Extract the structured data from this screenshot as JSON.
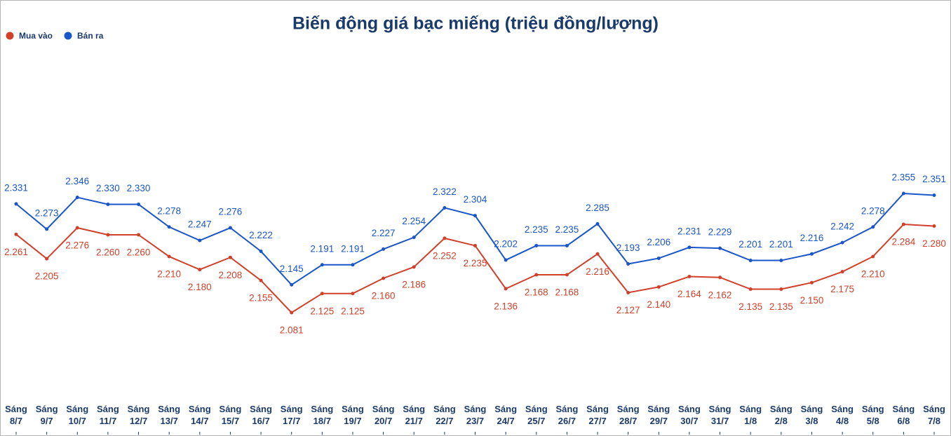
{
  "chart_data": {
    "type": "line",
    "title": "Biến động giá bạc miếng (triệu đồng/lượng)",
    "categories": [
      "Sáng 8/7",
      "Sáng 9/7",
      "Sáng 10/7",
      "Sáng 11/7",
      "Sáng 12/7",
      "Sáng 13/7",
      "Sáng 14/7",
      "Sáng 15/7",
      "Sáng 16/7",
      "Sáng 17/7",
      "Sáng 18/7",
      "Sáng 19/7",
      "Sáng 20/7",
      "Sáng 21/7",
      "Sáng 22/7",
      "Sáng 23/7",
      "Sáng 24/7",
      "Sáng 25/7",
      "Sáng 26/7",
      "Sáng 27/7",
      "Sáng 28/7",
      "Sáng 29/7",
      "Sáng 30/7",
      "Sáng 31/7",
      "Sáng 1/8",
      "Sáng 2/8",
      "Sáng 3/8",
      "Sáng 4/8",
      "Sáng 5/8",
      "Sáng 6/8",
      "Sáng 7/8"
    ],
    "series": [
      {
        "name": "Mua vào",
        "color": "#d0402a",
        "values": [
          2.261,
          2.205,
          2.276,
          2.26,
          2.26,
          2.21,
          2.18,
          2.208,
          2.155,
          2.081,
          2.125,
          2.125,
          2.16,
          2.186,
          2.252,
          2.235,
          2.136,
          2.168,
          2.168,
          2.216,
          2.127,
          2.14,
          2.164,
          2.162,
          2.135,
          2.135,
          2.15,
          2.175,
          2.21,
          2.284,
          2.28
        ],
        "value_labels": [
          "2.261",
          "2.205",
          "2.276",
          "2.260",
          "2.260",
          "2.210",
          "2.180",
          "2.208",
          "2.155",
          "2.081",
          "2.125",
          "2.125",
          "2.160",
          "2.186",
          "2.252",
          "2.235",
          "2.136",
          "2.168",
          "2.168",
          "2.216",
          "2.127",
          "2.140",
          "2.164",
          "2.162",
          "2.135",
          "2.135",
          "2.150",
          "2.175",
          "2.210",
          "2.284",
          "2.280"
        ]
      },
      {
        "name": "Bán ra",
        "color": "#1a56c8",
        "values": [
          2.331,
          2.273,
          2.346,
          2.33,
          2.33,
          2.278,
          2.247,
          2.276,
          2.222,
          2.145,
          2.191,
          2.191,
          2.227,
          2.254,
          2.322,
          2.304,
          2.202,
          2.235,
          2.235,
          2.285,
          2.193,
          2.206,
          2.231,
          2.229,
          2.201,
          2.201,
          2.216,
          2.242,
          2.278,
          2.355,
          2.351
        ],
        "value_labels": [
          "2.331",
          "2.273",
          "2.346",
          "2.330",
          "2.330",
          "2.278",
          "2.247",
          "2.276",
          "2.222",
          "2.145",
          "2.191",
          "2.191",
          "2.227",
          "2.254",
          "2.322",
          "2.304",
          "2.202",
          "2.235",
          "2.235",
          "2.285",
          "2.193",
          "2.206",
          "2.231",
          "2.229",
          "2.201",
          "2.201",
          "2.216",
          "2.242",
          "2.278",
          "2.355",
          "2.351"
        ]
      }
    ]
  }
}
